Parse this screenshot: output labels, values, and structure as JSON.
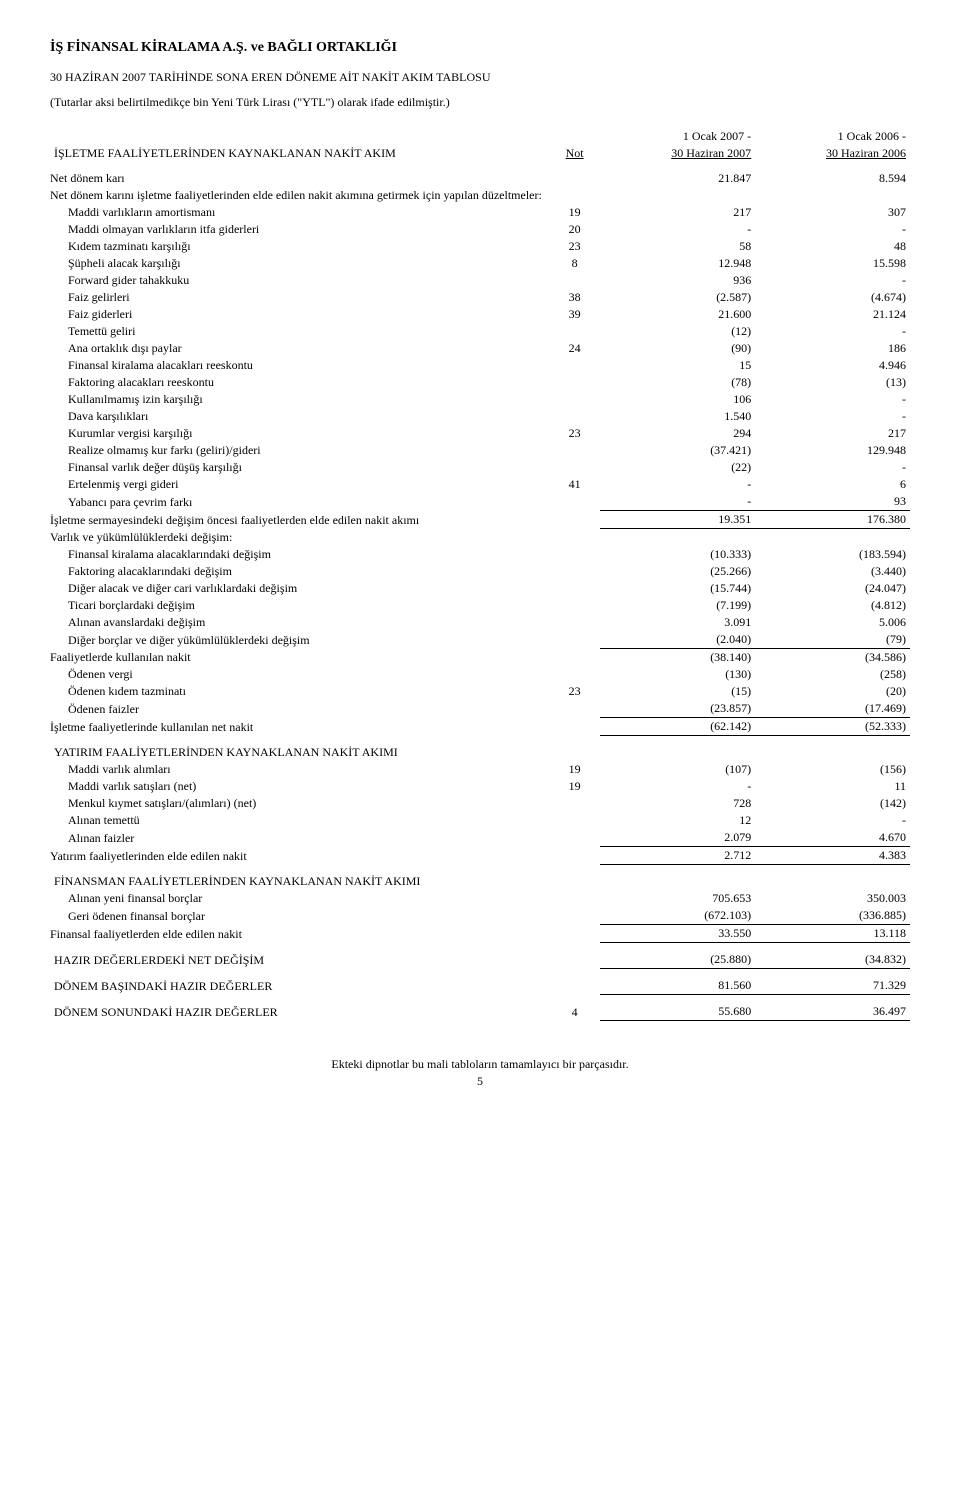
{
  "header": {
    "company": "İŞ FİNANSAL KİRALAMA A.Ş. ve BAĞLI ORTAKLIĞI",
    "title": "30 HAZİRAN 2007 TARİHİNDE SONA EREN DÖNEME AİT NAKİT AKIM TABLOSU",
    "currency_note": "(Tutarlar aksi belirtilmedikçe bin Yeni Türk Lirası (\"YTL\") olarak ifade edilmiştir.)"
  },
  "columns": {
    "not": "Not",
    "period1_top": "1 Ocak 2007 -",
    "period1_date": "30 Haziran 2007",
    "period2_top": "1 Ocak 2006 -",
    "period2_date": "30 Haziran 2006"
  },
  "sections": [
    {
      "heading": "İŞLETME FAALİYETLERİNDEN KAYNAKLANAN NAKİT AKIM",
      "rows": [
        {
          "label": "Net dönem karı",
          "not": "",
          "v1": "21.847",
          "v2": "8.594"
        },
        {
          "label": "Net dönem karını işletme faaliyetlerinden elde edilen nakit akımına getirmek için yapılan düzeltmeler:",
          "label_only": true
        },
        {
          "label": "Maddi varlıkların amortismanı",
          "indent": true,
          "not": "19",
          "v1": "217",
          "v2": "307"
        },
        {
          "label": "Maddi olmayan varlıkların itfa giderleri",
          "indent": true,
          "not": "20",
          "v1": "-",
          "v2": "-"
        },
        {
          "label": "Kıdem tazminatı karşılığı",
          "indent": true,
          "not": "23",
          "v1": "58",
          "v2": "48"
        },
        {
          "label": "Şüpheli alacak karşılığı",
          "indent": true,
          "not": "8",
          "v1": "12.948",
          "v2": "15.598"
        },
        {
          "label": "Forward gider tahakkuku",
          "indent": true,
          "not": "",
          "v1": "936",
          "v2": "-"
        },
        {
          "label": "Faiz gelirleri",
          "indent": true,
          "not": "38",
          "v1": "(2.587)",
          "v2": "(4.674)"
        },
        {
          "label": "Faiz giderleri",
          "indent": true,
          "not": "39",
          "v1": "21.600",
          "v2": "21.124"
        },
        {
          "label": "Temettü geliri",
          "indent": true,
          "not": "",
          "v1": "(12)",
          "v2": "-"
        },
        {
          "label": "Ana ortaklık dışı paylar",
          "indent": true,
          "not": "24",
          "v1": "(90)",
          "v2": "186"
        },
        {
          "label": "Finansal kiralama alacakları reeskontu",
          "indent": true,
          "not": "",
          "v1": "15",
          "v2": "4.946"
        },
        {
          "label": "Faktoring alacakları reeskontu",
          "indent": true,
          "not": "",
          "v1": "(78)",
          "v2": "(13)"
        },
        {
          "label": "Kullanılmamış izin karşılığı",
          "indent": true,
          "not": "",
          "v1": "106",
          "v2": "-"
        },
        {
          "label": "Dava karşılıkları",
          "indent": true,
          "not": "",
          "v1": "1.540",
          "v2": "-"
        },
        {
          "label": "Kurumlar vergisi karşılığı",
          "indent": true,
          "not": "23",
          "v1": "294",
          "v2": "217"
        },
        {
          "label": "Realize olmamış kur farkı (geliri)/gideri",
          "indent": true,
          "not": "",
          "v1": "(37.421)",
          "v2": "129.948"
        },
        {
          "label": "Finansal varlık değer düşüş karşılığı",
          "indent": true,
          "not": "",
          "v1": "(22)",
          "v2": "-"
        },
        {
          "label": "Ertelenmiş vergi gideri",
          "indent": true,
          "not": "41",
          "v1": "-",
          "v2": "6"
        },
        {
          "label": "Yabancı para çevrim farkı",
          "indent": true,
          "not": "",
          "v1": "-",
          "v2": "93",
          "underline": true
        },
        {
          "label": "İşletme sermayesindeki değişim öncesi faaliyetlerden elde edilen nakit akımı",
          "not": "",
          "v1": "19.351",
          "v2": "176.380",
          "underline": true
        },
        {
          "label": "Varlık ve yükümlülüklerdeki değişim:",
          "label_only": true
        },
        {
          "label": "Finansal kiralama alacaklarındaki değişim",
          "indent": true,
          "not": "",
          "v1": "(10.333)",
          "v2": "(183.594)"
        },
        {
          "label": "Faktoring alacaklarındaki değişim",
          "indent": true,
          "not": "",
          "v1": "(25.266)",
          "v2": "(3.440)"
        },
        {
          "label": "Diğer alacak ve diğer cari varlıklardaki değişim",
          "indent": true,
          "not": "",
          "v1": "(15.744)",
          "v2": "(24.047)"
        },
        {
          "label": "Ticari borçlardaki değişim",
          "indent": true,
          "not": "",
          "v1": "(7.199)",
          "v2": "(4.812)"
        },
        {
          "label": "Alınan avanslardaki değişim",
          "indent": true,
          "not": "",
          "v1": "3.091",
          "v2": "5.006"
        },
        {
          "label": "Diğer borçlar ve diğer yükümlülüklerdeki değişim",
          "indent": true,
          "not": "",
          "v1": "(2.040)",
          "v2": "(79)",
          "underline": true
        },
        {
          "label": "Faaliyetlerde kullanılan nakit",
          "not": "",
          "v1": "(38.140)",
          "v2": "(34.586)"
        },
        {
          "label": "Ödenen vergi",
          "indent": true,
          "not": "",
          "v1": "(130)",
          "v2": "(258)"
        },
        {
          "label": "Ödenen kıdem tazminatı",
          "indent": true,
          "not": "23",
          "v1": "(15)",
          "v2": "(20)"
        },
        {
          "label": "Ödenen faizler",
          "indent": true,
          "not": "",
          "v1": "(23.857)",
          "v2": "(17.469)",
          "underline": true
        },
        {
          "label": "İşletme faaliyetlerinde kullanılan net nakit",
          "not": "",
          "v1": "(62.142)",
          "v2": "(52.333)",
          "underline": true
        }
      ]
    },
    {
      "heading": "YATIRIM FAALİYETLERİNDEN KAYNAKLANAN NAKİT AKIMI",
      "rows": [
        {
          "label": "Maddi varlık alımları",
          "indent": true,
          "not": "19",
          "v1": "(107)",
          "v2": "(156)"
        },
        {
          "label": "Maddi varlık satışları (net)",
          "indent": true,
          "not": "19",
          "v1": "-",
          "v2": "11"
        },
        {
          "label": "Menkul kıymet satışları/(alımları) (net)",
          "indent": true,
          "not": "",
          "v1": "728",
          "v2": "(142)"
        },
        {
          "label": "Alınan temettü",
          "indent": true,
          "not": "",
          "v1": "12",
          "v2": "-"
        },
        {
          "label": "Alınan faizler",
          "indent": true,
          "not": "",
          "v1": "2.079",
          "v2": "4.670",
          "underline": true
        },
        {
          "label": "Yatırım faaliyetlerinden elde edilen nakit",
          "not": "",
          "v1": "2.712",
          "v2": "4.383",
          "underline": true
        }
      ]
    },
    {
      "heading": "FİNANSMAN FAALİYETLERİNDEN KAYNAKLANAN NAKİT AKIMI",
      "rows": [
        {
          "label": "Alınan yeni finansal borçlar",
          "indent": true,
          "not": "",
          "v1": "705.653",
          "v2": "350.003"
        },
        {
          "label": "Geri ödenen finansal borçlar",
          "indent": true,
          "not": "",
          "v1": "(672.103)",
          "v2": "(336.885)",
          "underline": true
        },
        {
          "label": "Finansal faaliyetlerden elde edilen nakit",
          "not": "",
          "v1": "33.550",
          "v2": "13.118",
          "underline": true
        }
      ]
    }
  ],
  "totals": [
    {
      "label": "HAZIR DEĞERLERDEKİ NET DEĞİŞİM",
      "not": "",
      "v1": "(25.880)",
      "v2": "(34.832)",
      "underline": true
    },
    {
      "label": "DÖNEM BAŞINDAKİ HAZIR DEĞERLER",
      "not": "",
      "v1": "81.560",
      "v2": "71.329",
      "underline": true
    },
    {
      "label": "DÖNEM SONUNDAKİ HAZIR DEĞERLER",
      "not": "4",
      "v1": "55.680",
      "v2": "36.497",
      "underline": true
    }
  ],
  "footer": {
    "note": "Ekteki dipnotlar bu mali tabloların tamamlayıcı bir parçasıdır.",
    "page": "5"
  }
}
